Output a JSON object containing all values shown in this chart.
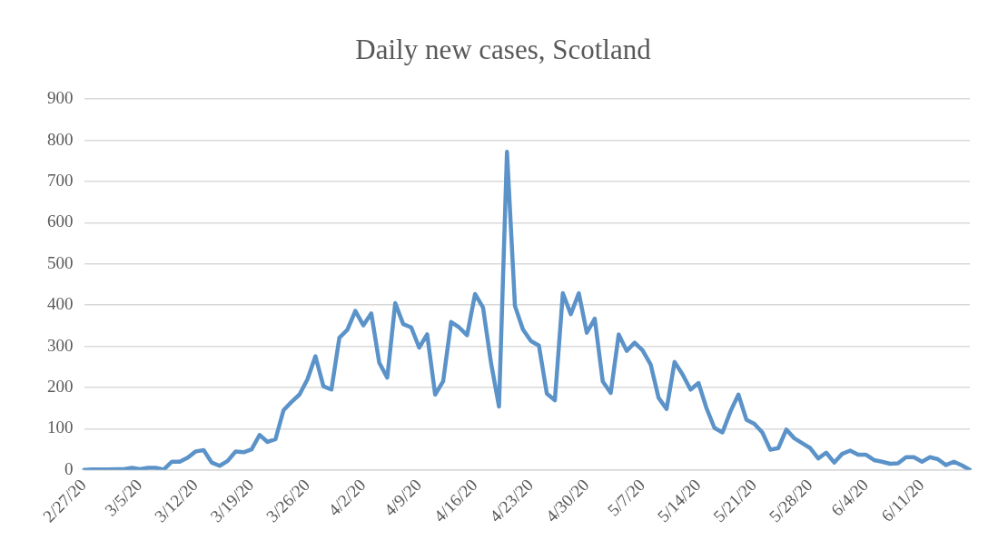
{
  "chart_data": {
    "type": "line",
    "title": "Daily new cases, Scotland",
    "categories": [
      "2/27/20",
      null,
      null,
      null,
      null,
      null,
      null,
      "3/5/20",
      null,
      null,
      null,
      null,
      null,
      null,
      "3/12/20",
      null,
      null,
      null,
      null,
      null,
      null,
      "3/19/20",
      null,
      null,
      null,
      null,
      null,
      null,
      "3/26/20",
      null,
      null,
      null,
      null,
      null,
      null,
      "4/2/20",
      null,
      null,
      null,
      null,
      null,
      null,
      "4/9/20",
      null,
      null,
      null,
      null,
      null,
      null,
      "4/16/20",
      null,
      null,
      null,
      null,
      null,
      null,
      "4/23/20",
      null,
      null,
      null,
      null,
      null,
      null,
      "4/30/20",
      null,
      null,
      null,
      null,
      null,
      null,
      "5/7/20",
      null,
      null,
      null,
      null,
      null,
      null,
      "5/14/20",
      null,
      null,
      null,
      null,
      null,
      null,
      "5/21/20",
      null,
      null,
      null,
      null,
      null,
      null,
      "5/28/20",
      null,
      null,
      null,
      null,
      null,
      null,
      "6/4/20",
      null,
      null,
      null,
      null,
      null,
      null,
      "6/11/20",
      null,
      null,
      null,
      null,
      null,
      null
    ],
    "series": [
      {
        "color": "#5b93c9",
        "values": [
          0,
          1,
          1,
          1,
          2,
          2,
          5,
          2,
          5,
          5,
          1,
          20,
          20,
          30,
          45,
          48,
          18,
          10,
          22,
          45,
          43,
          50,
          85,
          68,
          75,
          145,
          165,
          183,
          220,
          276,
          203,
          195,
          321,
          340,
          386,
          351,
          380,
          260,
          224,
          405,
          354,
          346,
          297,
          329,
          183,
          215,
          359,
          346,
          327,
          427,
          394,
          260,
          154,
          772,
          398,
          341,
          313,
          302,
          185,
          169,
          429,
          378,
          429,
          333,
          367,
          215,
          187,
          329,
          289,
          309,
          290,
          256,
          175,
          148,
          262,
          232,
          195,
          211,
          150,
          102,
          91,
          142,
          183,
          122,
          112,
          91,
          49,
          53,
          98,
          77,
          65,
          53,
          28,
          42,
          18,
          39,
          47,
          37,
          37,
          24,
          20,
          15,
          16,
          31,
          31,
          20,
          31,
          26,
          12,
          20,
          11,
          0
        ]
      }
    ],
    "ylim": [
      0,
      900
    ],
    "yticks": [
      0,
      100,
      200,
      300,
      400,
      500,
      600,
      700,
      800,
      900
    ],
    "grid": "y",
    "legend": false,
    "marker": "none",
    "line_style": "solid"
  }
}
